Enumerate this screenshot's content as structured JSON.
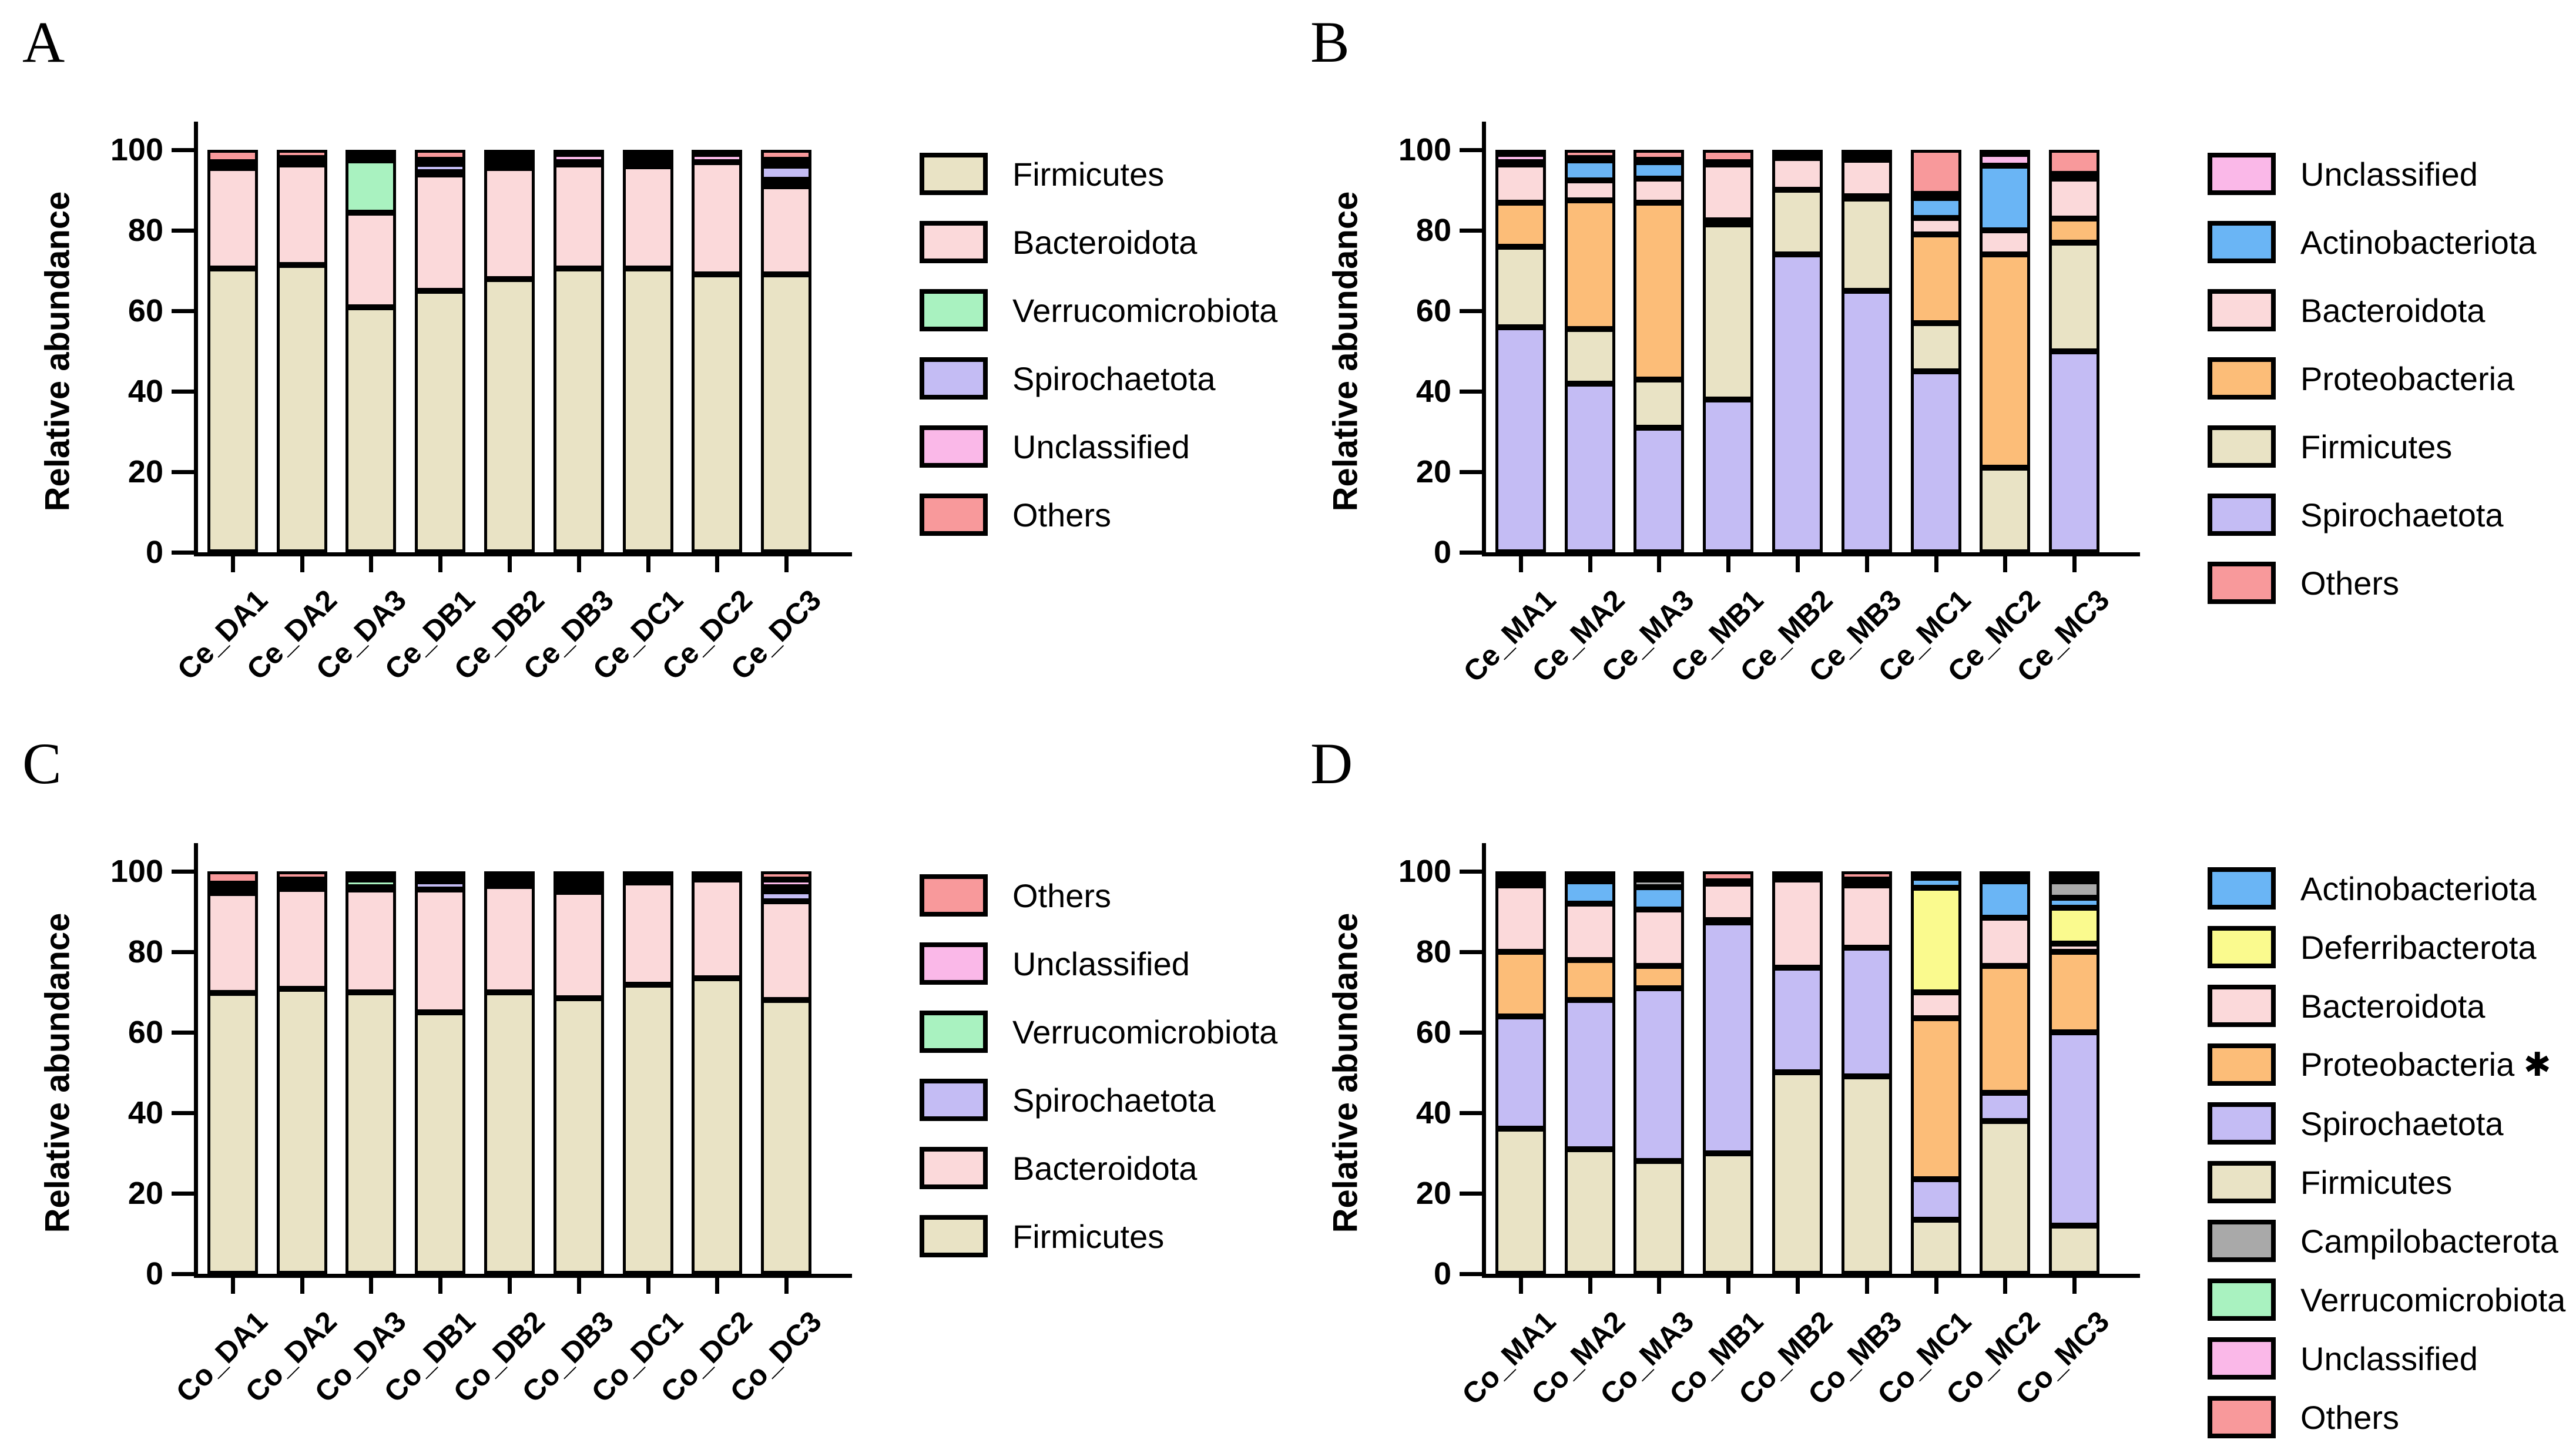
{
  "figure": {
    "background": "#ffffff",
    "y_axis_label": "Relative abundance",
    "panel_letters": [
      "A",
      "B",
      "C",
      "D"
    ]
  },
  "palette": {
    "Firmicutes": "#E9E3C5",
    "Bacteroidota": "#FBD9DA",
    "Verrucomicrobiota": "#A9F2C0",
    "Spirochaetota": "#C4BCF4",
    "Unclassified": "#FAB8E8",
    "Others": "#F8999B",
    "Actinobacteriota": "#6AB5F5",
    "Proteobacteria": "#FCBD78",
    "Deferribacterota": "#FAFA8E",
    "Campilobacterota": "#A9A9A9"
  },
  "chart_data": [
    {
      "type": "bar",
      "stacked": true,
      "letter": "A",
      "ylabel": "Relative abundance",
      "ylim": [
        0,
        100
      ],
      "yticks": [
        0,
        20,
        40,
        60,
        80,
        100
      ],
      "grid": false,
      "legend_position": "right",
      "categories": [
        "Ce_DA1",
        "Ce_DA2",
        "Ce_DA3",
        "Ce_DB1",
        "Ce_DB2",
        "Ce_DB3",
        "Ce_DC1",
        "Ce_DC2",
        "Ce_DC3"
      ],
      "series": [
        {
          "name": "Firmicutes",
          "color": "#E9E3C5",
          "values": [
            70.5,
            71.5,
            61,
            65,
            68,
            70.5,
            70.5,
            69,
            69
          ]
        },
        {
          "name": "Bacteroidota",
          "color": "#FBD9DA",
          "values": [
            25,
            25,
            23.5,
            29,
            27.5,
            26,
            25.5,
            28,
            22
          ]
        },
        {
          "name": "Verrucomicrobiota",
          "color": "#A9F2C0",
          "values": [
            0,
            0,
            13,
            0.5,
            0.5,
            0,
            1,
            0,
            1.5
          ]
        },
        {
          "name": "Spirochaetota",
          "color": "#C4BCF4",
          "values": [
            1,
            0.5,
            0.5,
            2,
            1.5,
            0.5,
            0.5,
            0,
            3.5
          ]
        },
        {
          "name": "Unclassified",
          "color": "#FAB8E8",
          "values": [
            0.5,
            1,
            1,
            1,
            1.5,
            2,
            1.5,
            2,
            1.5
          ]
        },
        {
          "name": "Others",
          "color": "#F8999B",
          "values": [
            3,
            2,
            1,
            2.5,
            1,
            1,
            1,
            1,
            2.5
          ]
        }
      ],
      "legend": [
        {
          "label": "Firmicutes",
          "color": "#E9E3C5"
        },
        {
          "label": "Bacteroidota",
          "color": "#FBD9DA"
        },
        {
          "label": "Verrucomicrobiota",
          "color": "#A9F2C0"
        },
        {
          "label": "Spirochaetota",
          "color": "#C4BCF4"
        },
        {
          "label": "Unclassified",
          "color": "#FAB8E8"
        },
        {
          "label": "Others",
          "color": "#F8999B"
        }
      ]
    },
    {
      "type": "bar",
      "stacked": true,
      "letter": "B",
      "ylabel": "Relative abundance",
      "ylim": [
        0,
        100
      ],
      "yticks": [
        0,
        20,
        40,
        60,
        80,
        100
      ],
      "grid": false,
      "legend_position": "right",
      "categories": [
        "Ce_MA1",
        "Ce_MA2",
        "Ce_MA3",
        "Ce_MB1",
        "Ce_MB2",
        "Ce_MB3",
        "Ce_MC1",
        "Ce_MC2",
        "Ce_MC3"
      ],
      "series": [
        {
          "name": "Spirochaetota",
          "color": "#C4BCF4",
          "values": [
            56,
            42,
            31,
            38,
            74,
            65,
            45,
            0,
            50
          ]
        },
        {
          "name": "Firmicutes",
          "color": "#E9E3C5",
          "values": [
            20,
            13.5,
            12,
            43.5,
            16,
            23,
            12,
            21,
            27
          ]
        },
        {
          "name": "Proteobacteria",
          "color": "#FCBD78",
          "values": [
            11,
            32,
            44,
            1,
            0,
            0.5,
            22,
            53,
            6
          ]
        },
        {
          "name": "Bacteroidota",
          "color": "#FBD9DA",
          "values": [
            9.5,
            5,
            6,
            14,
            8,
            9,
            4,
            6,
            10
          ]
        },
        {
          "name": "Actinobacteriota",
          "color": "#6AB5F5",
          "values": [
            0.5,
            5,
            4,
            0,
            0,
            0,
            5,
            16,
            0.5
          ]
        },
        {
          "name": "Unclassified",
          "color": "#FAB8E8",
          "values": [
            2,
            0.5,
            0.5,
            0.5,
            1,
            1.5,
            1,
            3,
            0.5
          ]
        },
        {
          "name": "Others",
          "color": "#F8999B",
          "values": [
            1,
            2,
            2.5,
            3,
            1,
            1,
            11,
            1,
            6
          ]
        }
      ],
      "legend": [
        {
          "label": "Unclassified",
          "color": "#FAB8E8"
        },
        {
          "label": "Actinobacteriota",
          "color": "#6AB5F5"
        },
        {
          "label": "Bacteroidota",
          "color": "#FBD9DA"
        },
        {
          "label": "Proteobacteria",
          "color": "#FCBD78"
        },
        {
          "label": "Firmicutes",
          "color": "#E9E3C5"
        },
        {
          "label": "Spirochaetota",
          "color": "#C4BCF4"
        },
        {
          "label": "Others",
          "color": "#F8999B"
        }
      ]
    },
    {
      "type": "bar",
      "stacked": true,
      "letter": "C",
      "ylabel": "Relative abundance",
      "ylim": [
        0,
        100
      ],
      "yticks": [
        0,
        20,
        40,
        60,
        80,
        100
      ],
      "grid": false,
      "legend_position": "right",
      "categories": [
        "Co_DA1",
        "Co_DA2",
        "Co_DA3",
        "Co_DB1",
        "Co_DB2",
        "Co_DB3",
        "Co_DC1",
        "Co_DC2",
        "Co_DC3"
      ],
      "series": [
        {
          "name": "Firmicutes",
          "color": "#E9E3C5",
          "values": [
            70,
            71,
            70,
            65,
            70,
            68.5,
            72,
            73.5,
            68
          ]
        },
        {
          "name": "Bacteroidota",
          "color": "#FBD9DA",
          "values": [
            25,
            25,
            25.5,
            30.5,
            26.5,
            26.5,
            25.5,
            24.5,
            24.5
          ]
        },
        {
          "name": "Spirochaetota",
          "color": "#C4BCF4",
          "values": [
            0.5,
            0.5,
            0.5,
            2,
            0.5,
            0.5,
            0.3,
            0,
            2.5
          ]
        },
        {
          "name": "Verrucomicrobiota",
          "color": "#A9F2C0",
          "values": [
            0.3,
            0.3,
            2,
            0,
            0,
            1.5,
            0,
            0,
            1
          ]
        },
        {
          "name": "Unclassified",
          "color": "#FAB8E8",
          "values": [
            1.2,
            1.2,
            1,
            1,
            1.5,
            1.5,
            1.2,
            1,
            2
          ]
        },
        {
          "name": "Others",
          "color": "#F8999B",
          "values": [
            3,
            2,
            1,
            1.5,
            1.5,
            1.5,
            1,
            1,
            2
          ]
        }
      ],
      "legend": [
        {
          "label": "Others",
          "color": "#F8999B"
        },
        {
          "label": "Unclassified",
          "color": "#FAB8E8"
        },
        {
          "label": "Verrucomicrobiota",
          "color": "#A9F2C0"
        },
        {
          "label": "Spirochaetota",
          "color": "#C4BCF4"
        },
        {
          "label": "Bacteroidota",
          "color": "#FBD9DA"
        },
        {
          "label": "Firmicutes",
          "color": "#E9E3C5"
        }
      ]
    },
    {
      "type": "bar",
      "stacked": true,
      "letter": "D",
      "ylabel": "Relative abundance",
      "ylim": [
        0,
        100
      ],
      "yticks": [
        0,
        20,
        40,
        60,
        80,
        100
      ],
      "grid": false,
      "legend_position": "right",
      "categories": [
        "Co_MA1",
        "Co_MA2",
        "Co_MA3",
        "Co_MB1",
        "Co_MB2",
        "Co_MB3",
        "Co_MC1",
        "Co_MC2",
        "Co_MC3"
      ],
      "series": [
        {
          "name": "Firmicutes",
          "color": "#E9E3C5",
          "values": [
            36,
            31,
            28,
            30,
            50,
            49,
            13.5,
            38,
            12
          ]
        },
        {
          "name": "Spirochaetota",
          "color": "#C4BCF4",
          "values": [
            28,
            37,
            43,
            57.5,
            26,
            32,
            10,
            7,
            48
          ]
        },
        {
          "name": "Proteobacteria",
          "color": "#FCBD78",
          "values": [
            16,
            10,
            5.5,
            0.5,
            0,
            0,
            40,
            31.5,
            20
          ]
        },
        {
          "name": "Bacteroidota",
          "color": "#FBD9DA",
          "values": [
            16.5,
            14,
            14,
            9,
            22,
            15.5,
            6.5,
            12,
            2
          ]
        },
        {
          "name": "Deferribacterota",
          "color": "#FAFA8E",
          "values": [
            0,
            0,
            0,
            0,
            0,
            0,
            26,
            0,
            9
          ]
        },
        {
          "name": "Actinobacteriota",
          "color": "#6AB5F5",
          "values": [
            1.5,
            5.5,
            5.5,
            0,
            0,
            0,
            2.5,
            9,
            2.5
          ]
        },
        {
          "name": "Campilobacterota",
          "color": "#A9A9A9",
          "values": [
            0,
            0,
            2,
            0,
            0,
            0,
            0,
            0,
            4
          ]
        },
        {
          "name": "Verrucomicrobiota",
          "color": "#A9F2C0",
          "values": [
            0,
            0,
            0,
            0,
            0,
            0,
            0,
            0,
            0
          ]
        },
        {
          "name": "Unclassified",
          "color": "#FAB8E8",
          "values": [
            1,
            1.5,
            1,
            0.5,
            1,
            1.5,
            1,
            1.5,
            1.5
          ]
        },
        {
          "name": "Others",
          "color": "#F8999B",
          "values": [
            1,
            1,
            1,
            2.5,
            1,
            2,
            0.5,
            1,
            1
          ]
        }
      ],
      "legend": [
        {
          "label": "Actinobacteriota",
          "color": "#6AB5F5"
        },
        {
          "label": "Deferribacterota",
          "color": "#FAFA8E"
        },
        {
          "label": "Bacteroidota",
          "color": "#FBD9DA"
        },
        {
          "label": "Proteobacteria ✱",
          "color": "#FCBD78"
        },
        {
          "label": "Spirochaetota",
          "color": "#C4BCF4"
        },
        {
          "label": "Firmicutes",
          "color": "#E9E3C5"
        },
        {
          "label": "Campilobacterota",
          "color": "#A9A9A9"
        },
        {
          "label": "Verrucomicrobiota",
          "color": "#A9F2C0"
        },
        {
          "label": "Unclassified",
          "color": "#FAB8E8"
        },
        {
          "label": "Others",
          "color": "#F8999B"
        }
      ]
    }
  ]
}
